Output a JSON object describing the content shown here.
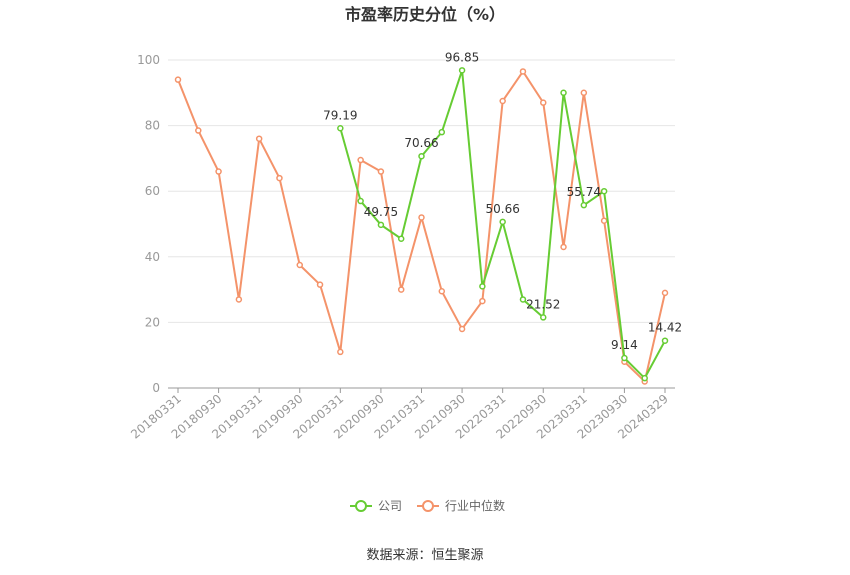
{
  "chart_data": {
    "type": "line",
    "title": "市盈率历史分位（%）",
    "source": "数据来源：恒生聚源",
    "ylim": [
      0,
      100
    ],
    "yticks": [
      0,
      20,
      40,
      60,
      80,
      100
    ],
    "grid": true,
    "legend_position": "bottom",
    "x": [
      "20180331",
      "20180630",
      "20180930",
      "20181231",
      "20190331",
      "20190630",
      "20190930",
      "20191231",
      "20200331",
      "20200630",
      "20200930",
      "20201231",
      "20210331",
      "20210630",
      "20210930",
      "20211231",
      "20220331",
      "20220630",
      "20220930",
      "20221231",
      "20230331",
      "20230630",
      "20230930",
      "20231231",
      "20240329"
    ],
    "xtick_labels": [
      "20180331",
      "20180930",
      "20190331",
      "20190930",
      "20200331",
      "20200930",
      "20210331",
      "20210930",
      "20220331",
      "20220930",
      "20230331",
      "20230930",
      "20240329"
    ],
    "series": [
      {
        "name": "公司",
        "color": "#66cc33",
        "values": [
          null,
          null,
          null,
          null,
          null,
          null,
          null,
          null,
          79.19,
          57,
          49.75,
          45.5,
          70.66,
          78,
          96.85,
          31,
          50.66,
          27,
          21.52,
          90,
          55.74,
          60,
          9.14,
          3,
          14.42
        ],
        "labels": {
          "8": "79.19",
          "10": "49.75",
          "12": "70.66",
          "14": "96.85",
          "16": "50.66",
          "18": "21.52",
          "20": "55.74",
          "22": "9.14",
          "24": "14.42"
        }
      },
      {
        "name": "行业中位数",
        "color": "#f4936a",
        "values": [
          94,
          78.5,
          66,
          27,
          76,
          64,
          37.5,
          31.5,
          11,
          69.5,
          66,
          30,
          52,
          29.5,
          18,
          26.5,
          87.5,
          96.5,
          87,
          43,
          90,
          51,
          8,
          2,
          29
        ]
      }
    ]
  }
}
